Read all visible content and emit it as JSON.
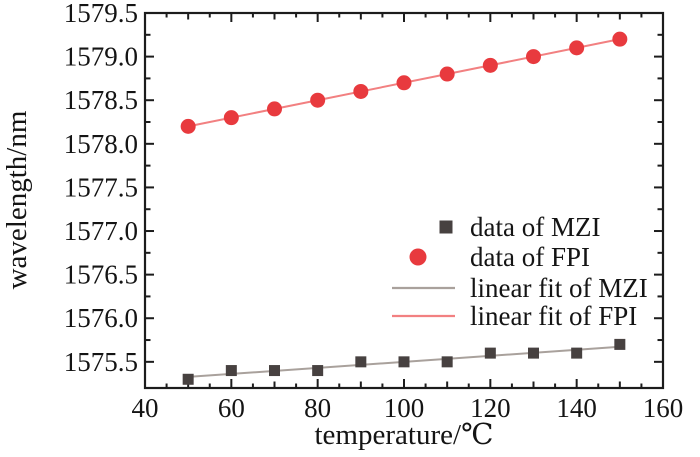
{
  "chart_data": {
    "type": "scatter",
    "title": "",
    "xlabel": "temperature/℃",
    "ylabel": "wavelength/nm",
    "x": [
      50,
      60,
      70,
      80,
      90,
      100,
      110,
      120,
      130,
      140,
      150
    ],
    "series": [
      {
        "name": "data of MZI",
        "marker": "square",
        "color": "#474140",
        "values": [
          1575.3,
          1575.4,
          1575.4,
          1575.4,
          1575.5,
          1575.5,
          1575.5,
          1575.6,
          1575.6,
          1575.6,
          1575.7
        ]
      },
      {
        "name": "data of FPI",
        "marker": "circle",
        "color": "#e83a3e",
        "values": [
          1578.2,
          1578.3,
          1578.4,
          1578.5,
          1578.6,
          1578.7,
          1578.8,
          1578.9,
          1579.0,
          1579.1,
          1579.2
        ]
      }
    ],
    "fits": [
      {
        "name": "linear fit of MZI",
        "color": "#a9a19c",
        "x1": 50,
        "y1": 1575.327,
        "x2": 150,
        "y2": 1575.673
      },
      {
        "name": "linear fit of FPI",
        "color": "#f28081",
        "x1": 50,
        "y1": 1578.2,
        "x2": 150,
        "y2": 1579.2
      }
    ],
    "x_axis": {
      "min": 40,
      "max": 160,
      "major_ticks": [
        40,
        60,
        80,
        100,
        120,
        140,
        160
      ],
      "minor_step": 5,
      "semi_step": 10
    },
    "y_axis": {
      "min": 1575.2,
      "max": 1579.5,
      "major_ticks": [
        1575.5,
        1576.0,
        1576.5,
        1577.0,
        1577.5,
        1578.0,
        1578.5,
        1579.0,
        1579.5
      ],
      "minor_offset": 0.25
    },
    "legend": {
      "position": "center-right",
      "entries": [
        {
          "label": "data of MZI",
          "type": "marker",
          "marker": "square",
          "color": "#474140"
        },
        {
          "label": "data of FPI",
          "type": "marker",
          "marker": "circle",
          "color": "#e83a3e"
        },
        {
          "label": "linear fit of MZI",
          "type": "line",
          "color": "#a9a19c"
        },
        {
          "label": "linear fit of FPI",
          "type": "line",
          "color": "#f28081"
        }
      ]
    },
    "colors": {
      "axis": "#1c1c1c",
      "text": "#141414",
      "background": "#ffffff"
    }
  }
}
